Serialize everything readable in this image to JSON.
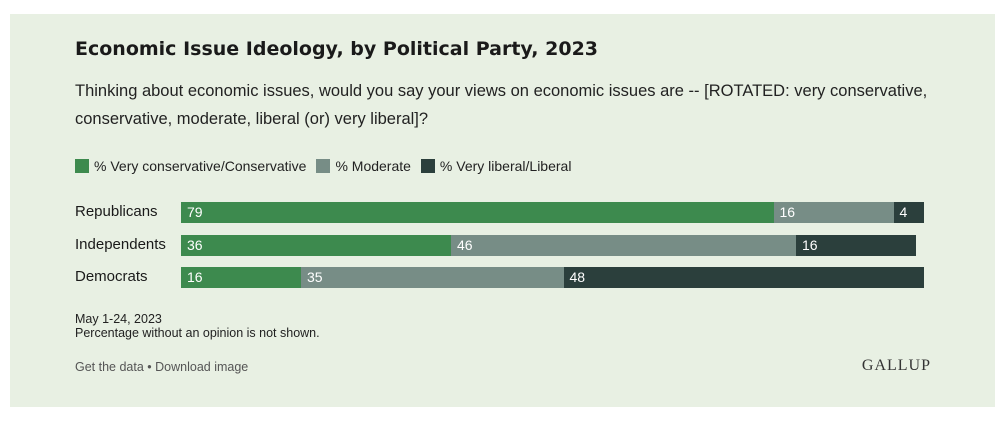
{
  "colors": {
    "background": "#e8f0e3",
    "conservative": "#3d8a4e",
    "moderate": "#778d86",
    "liberal": "#2b3f3c"
  },
  "chart_data": {
    "type": "bar",
    "orientation": "horizontal",
    "stacked": true,
    "title": "Economic Issue Ideology, by Political Party, 2023",
    "subtitle": "Thinking about economic issues, would you say your views on economic issues are -- [ROTATED: very conservative, conservative, moderate, liberal (or) very liberal]?",
    "categories": [
      "Republicans",
      "Independents",
      "Democrats"
    ],
    "series": [
      {
        "name": "% Very conservative/Conservative",
        "color": "#3d8a4e",
        "values": [
          79,
          36,
          16
        ]
      },
      {
        "name": "% Moderate",
        "color": "#778d86",
        "values": [
          16,
          46,
          35
        ]
      },
      {
        "name": "% Very liberal/Liberal",
        "color": "#2b3f3c",
        "values": [
          4,
          16,
          48
        ]
      }
    ],
    "xlim": [
      0,
      100
    ],
    "legend_position": "top-left",
    "grid": false
  },
  "notes": {
    "date": "May 1-24, 2023",
    "caveat": "Percentage without an opinion is not shown."
  },
  "footer": {
    "get_data": "Get the data",
    "separator": " • ",
    "download": "Download image",
    "brand": "GALLUP"
  }
}
